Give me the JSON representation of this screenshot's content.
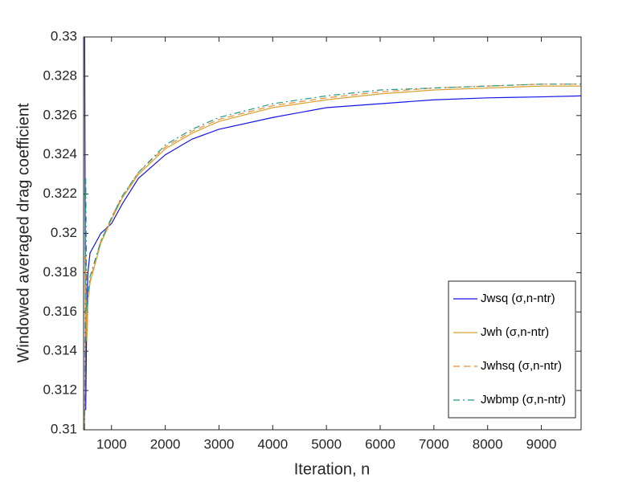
{
  "chart_data": {
    "type": "line",
    "xlabel": "Iteration, n",
    "ylabel": "Windowed averaged drag coefficient",
    "x": [
      500,
      520,
      540,
      560,
      600,
      700,
      800,
      1000,
      1200,
      1500,
      2000,
      2500,
      3000,
      4000,
      5000,
      6000,
      7000,
      8000,
      9000,
      9740
    ],
    "series": [
      {
        "name": "Jwsq (σ,n-ntr)",
        "color": "#1414e6",
        "style": "solid",
        "values": [
          0.33,
          0.311,
          0.316,
          0.318,
          0.319,
          0.3195,
          0.32,
          0.3205,
          0.3215,
          0.3228,
          0.324,
          0.3248,
          0.3253,
          0.3259,
          0.3264,
          0.3266,
          0.3268,
          0.3269,
          0.32695,
          0.327
        ]
      },
      {
        "name": "Jwh (σ,n-ntr)",
        "color": "#d9a030",
        "style": "solid",
        "values": [
          0.31,
          0.318,
          0.3145,
          0.3165,
          0.3175,
          0.3185,
          0.3195,
          0.3207,
          0.3218,
          0.323,
          0.3243,
          0.3251,
          0.3257,
          0.3264,
          0.3268,
          0.3271,
          0.3273,
          0.3274,
          0.3275,
          0.3275
        ]
      },
      {
        "name": "Jwhsq (σ,n-ntr)",
        "color": "#ee8a2a",
        "style": "dashed",
        "values": [
          0.31,
          0.319,
          0.315,
          0.3166,
          0.3176,
          0.3186,
          0.3196,
          0.3208,
          0.3219,
          0.3231,
          0.3244,
          0.3252,
          0.3258,
          0.3265,
          0.3269,
          0.3272,
          0.3274,
          0.3275,
          0.3276,
          0.3276
        ]
      },
      {
        "name": "Jwbmp (σ,n-ntr)",
        "color": "#22998a",
        "style": "dashdot",
        "values": [
          0.31,
          0.3228,
          0.316,
          0.3168,
          0.3178,
          0.3187,
          0.3196,
          0.3208,
          0.3219,
          0.3231,
          0.3245,
          0.3253,
          0.3259,
          0.3266,
          0.327,
          0.3273,
          0.3274,
          0.3275,
          0.3276,
          0.3276
        ]
      }
    ],
    "xlim": [
      480,
      9740
    ],
    "xticks": [
      1000,
      2000,
      3000,
      4000,
      5000,
      6000,
      7000,
      8000,
      9000
    ],
    "ylim": [
      0.31,
      0.33
    ],
    "yticks": [
      0.31,
      0.312,
      0.314,
      0.316,
      0.318,
      0.32,
      0.322,
      0.324,
      0.326,
      0.328,
      0.33
    ],
    "grid": false,
    "legend": "lower right"
  }
}
